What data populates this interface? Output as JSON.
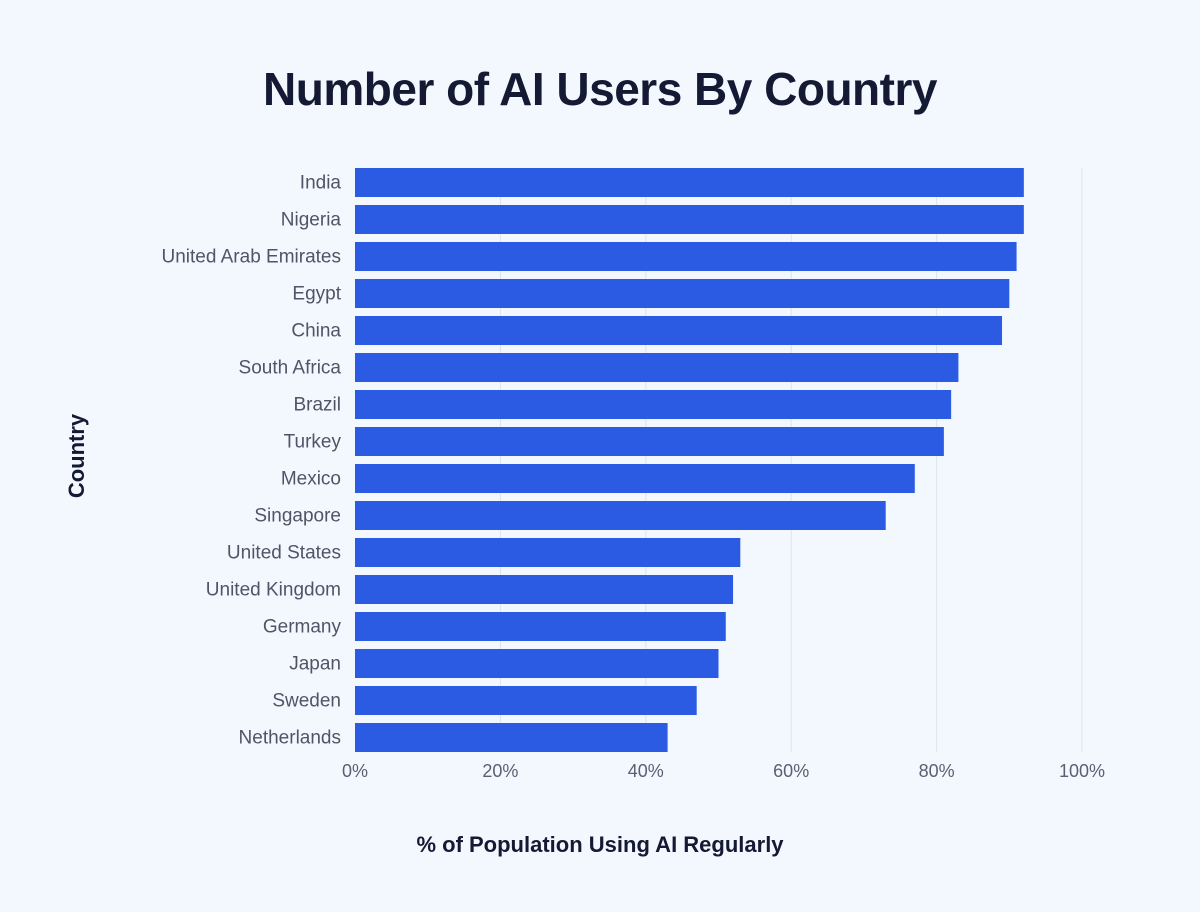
{
  "chart_data": {
    "type": "bar",
    "orientation": "horizontal",
    "title": "Number of AI Users By Country",
    "xlabel": "% of Population Using AI Regularly",
    "ylabel": "Country",
    "categories": [
      "India",
      "Nigeria",
      "United Arab Emirates",
      "Egypt",
      "China",
      "South Africa",
      "Brazil",
      "Turkey",
      "Mexico",
      "Singapore",
      "United States",
      "United Kingdom",
      "Germany",
      "Japan",
      "Sweden",
      "Netherlands"
    ],
    "values": [
      92,
      92,
      91,
      90,
      89,
      83,
      82,
      81,
      77,
      73,
      53,
      52,
      51,
      50,
      47,
      43
    ],
    "value_unit": "%",
    "xlim": [
      0,
      100
    ],
    "xticks": [
      0,
      20,
      40,
      60,
      80,
      100
    ],
    "xtick_labels": [
      "0%",
      "20%",
      "40%",
      "60%",
      "80%",
      "100%"
    ],
    "grid": "vertical",
    "legend": "none",
    "bar_color": "#2b5be3",
    "grid_color": "#dde4ee",
    "background_color": "#f3f8ff"
  }
}
